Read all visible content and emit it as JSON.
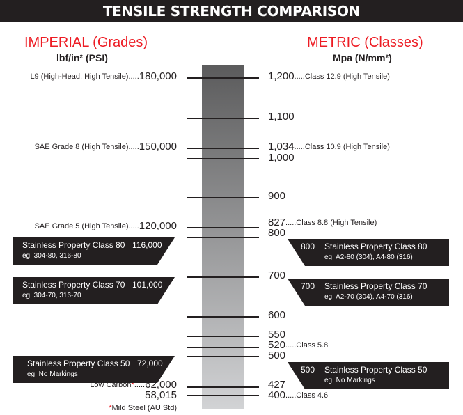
{
  "title": "TENSILE STRENGTH COMPARISON",
  "imperial": {
    "heading": "IMPERIAL (Grades)",
    "unit": "lbf/in² (PSI)"
  },
  "metric": {
    "heading": "METRIC (Classes)",
    "unit": "Mpa (N/mm²)"
  },
  "colors": {
    "accent": "#ed1c24",
    "dark": "#231f20",
    "bar_top": "#5b5b5c",
    "bar_bottom": "#d2d3d5"
  },
  "imperial_labels": [
    {
      "desc": "L9 (High-Head, High Tensile).....",
      "value": "180,000"
    },
    {
      "desc": "SAE Grade 8 (High Tensile).....",
      "value": "150,000"
    },
    {
      "desc": "SAE Grade 5 (High Tensile).....",
      "value": "120,000"
    },
    {
      "desc": "Low Carbon",
      "star": "*",
      "dots": ".....",
      "value": "62,000"
    },
    {
      "desc": "",
      "value": "58,015"
    }
  ],
  "footnote": {
    "star": "*",
    "text": "Mild Steel (AU Std)"
  },
  "metric_labels": [
    {
      "value": "1,200",
      "desc": ".....Class 12.9 (High Tensile)"
    },
    {
      "value": "1,100",
      "desc": ""
    },
    {
      "value": "1,034",
      "desc": ".....Class 10.9 (High Tensile)"
    },
    {
      "value": "1,000",
      "desc": ""
    },
    {
      "value": "900",
      "desc": ""
    },
    {
      "value": "827",
      "desc": ".....Class 8.8 (High Tensile)"
    },
    {
      "value": "800",
      "desc": ""
    },
    {
      "value": "700",
      "desc": ""
    },
    {
      "value": "600",
      "desc": ""
    },
    {
      "value": "550",
      "desc": ""
    },
    {
      "value": "520",
      "desc": ".....Class 5.8"
    },
    {
      "value": "500",
      "desc": ""
    },
    {
      "value": "427",
      "desc": ""
    },
    {
      "value": "400",
      "desc": ".....Class 4.6"
    }
  ],
  "imperial_boxes": [
    {
      "title": "Stainless Property Class 80",
      "value": "116,000",
      "sub": "eg. 304-80, 316-80"
    },
    {
      "title": "Stainless Property Class 70",
      "value": "101,000",
      "sub": "eg. 304-70, 316-70"
    },
    {
      "title": "Stainless Property Class 50",
      "value": "72,000",
      "sub": "eg. No Markings"
    }
  ],
  "metric_boxes": [
    {
      "value": "800",
      "title": "Stainless Property Class 80",
      "sub": "eg. A2-80 (304), A4-80 (316)"
    },
    {
      "value": "700",
      "title": "Stainless Property Class 70",
      "sub": "eg. A2-70 (304), A4-70 (316)"
    },
    {
      "value": "500",
      "title": "Stainless Property Class 50",
      "sub": "eg. No Markings"
    }
  ]
}
